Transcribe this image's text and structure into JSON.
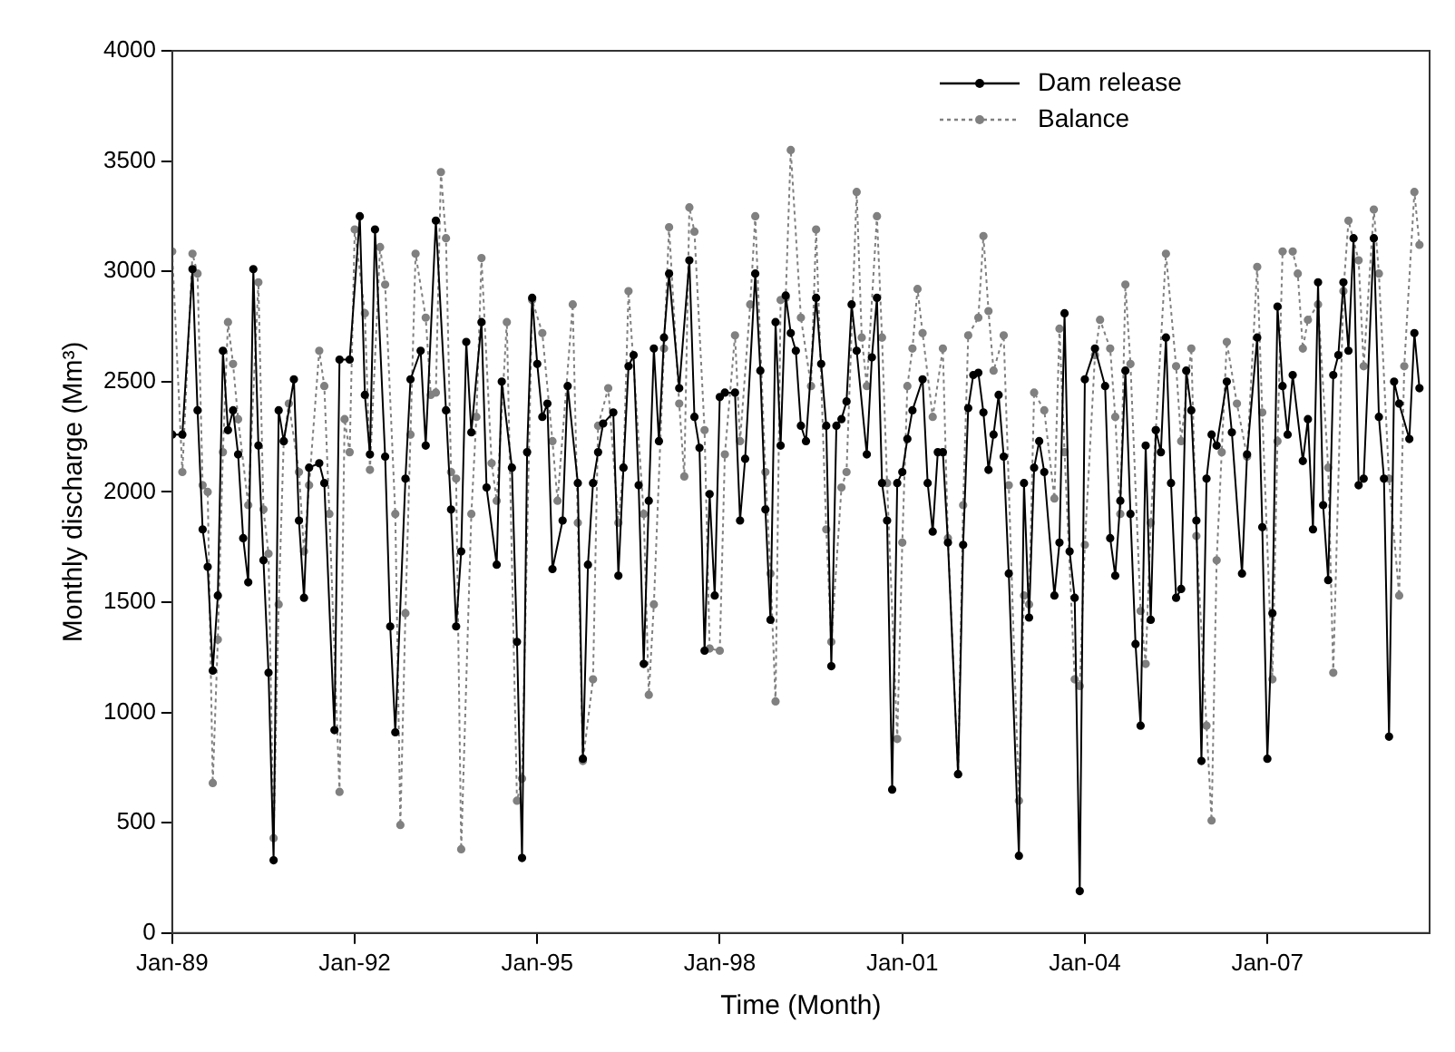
{
  "chart_data": {
    "type": "line",
    "xlabel": "Time (Month)",
    "ylabel": "Monthly discharge (Mm³)",
    "xlim": [
      "1989-01",
      "2009-09"
    ],
    "xticks": [
      {
        "value": "1989-01",
        "label": "Jan-89"
      },
      {
        "value": "1992-01",
        "label": "Jan-92"
      },
      {
        "value": "1995-01",
        "label": "Jan-95"
      },
      {
        "value": "1998-01",
        "label": "Jan-98"
      },
      {
        "value": "2001-01",
        "label": "Jan-01"
      },
      {
        "value": "2004-01",
        "label": "Jan-04"
      },
      {
        "value": "2007-01",
        "label": "Jan-07"
      }
    ],
    "ylim": [
      0,
      4000
    ],
    "yticks": [
      0,
      500,
      1000,
      1500,
      2000,
      2500,
      3000,
      3500,
      4000
    ],
    "grid": false,
    "legend": "top right",
    "series": [
      {
        "name": "Dam release",
        "color": "#000000",
        "marker": "circle",
        "line_style": "solid",
        "x": [
          "1989-01",
          "1989-03",
          "1989-05",
          "1989-06",
          "1989-07",
          "1989-08",
          "1989-09",
          "1989-10",
          "1989-11",
          "1989-12",
          "1990-01",
          "1990-02",
          "1990-03",
          "1990-04",
          "1990-05",
          "1990-06",
          "1990-07",
          "1990-08",
          "1990-09",
          "1990-10",
          "1990-11",
          "1991-01",
          "1991-02",
          "1991-03",
          "1991-04",
          "1991-06",
          "1991-07",
          "1991-09",
          "1991-10",
          "1991-12",
          "1992-02",
          "1992-03",
          "1992-04",
          "1992-05",
          "1992-07",
          "1992-08",
          "1992-09",
          "1992-11",
          "1992-12",
          "1993-02",
          "1993-03",
          "1993-05",
          "1993-07",
          "1993-08",
          "1993-09",
          "1993-10",
          "1993-11",
          "1993-12",
          "1994-02",
          "1994-03",
          "1994-05",
          "1994-06",
          "1994-08",
          "1994-09",
          "1994-10",
          "1994-11",
          "1994-12",
          "1995-01",
          "1995-02",
          "1995-03",
          "1995-04",
          "1995-06",
          "1995-07",
          "1995-09",
          "1995-10",
          "1995-11",
          "1995-12",
          "1996-01",
          "1996-02",
          "1996-04",
          "1996-05",
          "1996-06",
          "1996-07",
          "1996-08",
          "1996-09",
          "1996-10",
          "1996-11",
          "1996-12",
          "1997-01",
          "1997-02",
          "1997-03",
          "1997-05",
          "1997-07",
          "1997-08",
          "1997-09",
          "1997-10",
          "1997-11",
          "1997-12",
          "1998-01",
          "1998-02",
          "1998-04",
          "1998-05",
          "1998-06",
          "1998-08",
          "1998-09",
          "1998-10",
          "1998-11",
          "1998-12",
          "1999-01",
          "1999-02",
          "1999-03",
          "1999-04",
          "1999-05",
          "1999-06",
          "1999-08",
          "1999-09",
          "1999-10",
          "1999-11",
          "1999-12",
          "2000-01",
          "2000-02",
          "2000-03",
          "2000-04",
          "2000-06",
          "2000-07",
          "2000-08",
          "2000-09",
          "2000-10",
          "2000-11",
          "2000-12",
          "2001-01",
          "2001-02",
          "2001-03",
          "2001-05",
          "2001-06",
          "2001-07",
          "2001-08",
          "2001-09",
          "2001-10",
          "2001-12",
          "2002-01",
          "2002-02",
          "2002-03",
          "2002-04",
          "2002-05",
          "2002-06",
          "2002-07",
          "2002-08",
          "2002-09",
          "2002-10",
          "2002-12",
          "2003-01",
          "2003-02",
          "2003-03",
          "2003-04",
          "2003-05",
          "2003-07",
          "2003-08",
          "2003-09",
          "2003-10",
          "2003-11",
          "2003-12",
          "2004-01",
          "2004-03",
          "2004-05",
          "2004-06",
          "2004-07",
          "2004-08",
          "2004-09",
          "2004-10",
          "2004-11",
          "2004-12",
          "2005-01",
          "2005-02",
          "2005-03",
          "2005-04",
          "2005-05",
          "2005-06",
          "2005-07",
          "2005-08",
          "2005-09",
          "2005-10",
          "2005-11",
          "2005-12",
          "2006-01",
          "2006-02",
          "2006-03",
          "2006-05",
          "2006-06",
          "2006-08",
          "2006-09",
          "2006-11",
          "2006-12",
          "2007-01",
          "2007-02",
          "2007-03",
          "2007-04",
          "2007-05",
          "2007-06",
          "2007-08",
          "2007-09",
          "2007-10",
          "2007-11",
          "2007-12",
          "2008-01",
          "2008-02",
          "2008-03",
          "2008-04",
          "2008-05",
          "2008-06",
          "2008-07",
          "2008-08",
          "2008-10",
          "2008-11",
          "2008-12",
          "2009-01",
          "2009-02",
          "2009-03",
          "2009-05",
          "2009-06",
          "2009-07"
        ],
        "values": [
          2260,
          2260,
          3010,
          2370,
          1830,
          1660,
          1190,
          1530,
          2640,
          2280,
          2370,
          2170,
          1790,
          1590,
          3010,
          2210,
          1690,
          1180,
          330,
          2370,
          2230,
          2510,
          1870,
          1520,
          2110,
          2130,
          2040,
          920,
          2600,
          2600,
          3250,
          2440,
          2170,
          3190,
          2160,
          1390,
          910,
          2060,
          2510,
          2640,
          2210,
          3230,
          2370,
          1920,
          1390,
          1730,
          2680,
          2270,
          2770,
          2020,
          1670,
          2500,
          2110,
          1320,
          340,
          2180,
          2880,
          2580,
          2340,
          2400,
          1650,
          1870,
          2480,
          2040,
          790,
          1670,
          2040,
          2180,
          2310,
          2360,
          1620,
          2110,
          2570,
          2620,
          2030,
          1220,
          1960,
          2650,
          2230,
          2700,
          2990,
          2470,
          3050,
          2340,
          2200,
          1280,
          1990,
          1530,
          2430,
          2450,
          2450,
          1870,
          2150,
          2990,
          2550,
          1920,
          1420,
          2770,
          2210,
          2890,
          2720,
          2640,
          2300,
          2230,
          2880,
          2580,
          2300,
          1210,
          2300,
          2330,
          2410,
          2850,
          2640,
          2170,
          2610,
          2880,
          2040,
          1870,
          650,
          2040,
          2090,
          2240,
          2370,
          2510,
          2040,
          1820,
          2180,
          2180,
          1770,
          720,
          1760,
          2380,
          2530,
          2540,
          2360,
          2100,
          2260,
          2440,
          2160,
          1630,
          350,
          2040,
          1430,
          2110,
          2230,
          2090,
          1530,
          1770,
          2810,
          1730,
          1520,
          190,
          2510,
          2650,
          2480,
          1790,
          1620,
          1960,
          2550,
          1900,
          1310,
          940,
          2210,
          1420,
          2280,
          2180,
          2700,
          2040,
          1520,
          1560,
          2550,
          2370,
          1870,
          780,
          2060,
          2260,
          2210,
          2500,
          2270,
          1630,
          2170,
          2700,
          1840,
          790,
          1450,
          2840,
          2480,
          2260,
          2530,
          2140,
          2330,
          1830,
          2950,
          1940,
          1600,
          2530,
          2620,
          2950,
          2640,
          3150,
          2030,
          2060,
          3150,
          2340,
          2060,
          890,
          2500,
          2400,
          2240,
          2720,
          2470
        ]
      },
      {
        "name": "Balance",
        "color": "#808080",
        "marker": "circle",
        "line_style": "dotted",
        "x": [
          "1989-01",
          "1989-03",
          "1989-05",
          "1989-06",
          "1989-07",
          "1989-08",
          "1989-09",
          "1989-10",
          "1989-11",
          "1989-12",
          "1990-01",
          "1990-02",
          "1990-04",
          "1990-06",
          "1990-07",
          "1990-08",
          "1990-09",
          "1990-10",
          "1990-11",
          "1990-12",
          "1991-02",
          "1991-03",
          "1991-04",
          "1991-06",
          "1991-07",
          "1991-08",
          "1991-10",
          "1991-11",
          "1991-12",
          "1992-01",
          "1992-03",
          "1992-04",
          "1992-06",
          "1992-07",
          "1992-09",
          "1992-10",
          "1992-11",
          "1992-12",
          "1993-01",
          "1993-03",
          "1993-04",
          "1993-05",
          "1993-06",
          "1993-07",
          "1993-08",
          "1993-09",
          "1993-10",
          "1993-12",
          "1994-01",
          "1994-02",
          "1994-04",
          "1994-05",
          "1994-07",
          "1994-09",
          "1994-10",
          "1994-12",
          "1995-02",
          "1995-04",
          "1995-05",
          "1995-08",
          "1995-09",
          "1995-10",
          "1995-12",
          "1996-01",
          "1996-03",
          "1996-05",
          "1996-06",
          "1996-07",
          "1996-10",
          "1996-11",
          "1996-12",
          "1997-02",
          "1997-03",
          "1997-05",
          "1997-06",
          "1997-07",
          "1997-08",
          "1997-10",
          "1997-11",
          "1998-01",
          "1998-02",
          "1998-04",
          "1998-05",
          "1998-07",
          "1998-08",
          "1998-10",
          "1998-11",
          "1998-12",
          "1999-01",
          "1999-02",
          "1999-03",
          "1999-05",
          "1999-07",
          "1999-08",
          "1999-10",
          "1999-11",
          "2000-01",
          "2000-02",
          "2000-04",
          "2000-05",
          "2000-06",
          "2000-08",
          "2000-09",
          "2000-10",
          "2000-12",
          "2001-01",
          "2001-02",
          "2001-03",
          "2001-04",
          "2001-05",
          "2001-07",
          "2001-09",
          "2001-10",
          "2001-12",
          "2002-01",
          "2002-02",
          "2002-04",
          "2002-05",
          "2002-06",
          "2002-07",
          "2002-09",
          "2002-10",
          "2002-12",
          "2003-01",
          "2003-02",
          "2003-03",
          "2003-05",
          "2003-07",
          "2003-08",
          "2003-09",
          "2003-11",
          "2003-12",
          "2004-01",
          "2004-03",
          "2004-04",
          "2004-06",
          "2004-07",
          "2004-08",
          "2004-09",
          "2004-10",
          "2004-12",
          "2005-01",
          "2005-02",
          "2005-03",
          "2005-05",
          "2005-07",
          "2005-08",
          "2005-10",
          "2005-11",
          "2006-01",
          "2006-02",
          "2006-03",
          "2006-04",
          "2006-05",
          "2006-07",
          "2006-09",
          "2006-11",
          "2006-12",
          "2007-02",
          "2007-03",
          "2007-04",
          "2007-06",
          "2007-07",
          "2007-08",
          "2007-09",
          "2007-11",
          "2008-01",
          "2008-02",
          "2008-04",
          "2008-05",
          "2008-07",
          "2008-08",
          "2008-10",
          "2008-11",
          "2009-01",
          "2009-03",
          "2009-04",
          "2009-06",
          "2009-07"
        ],
        "values": [
          3090,
          2090,
          3080,
          2990,
          2030,
          2000,
          680,
          1330,
          2180,
          2770,
          2580,
          2330,
          1940,
          2950,
          1920,
          1720,
          430,
          1490,
          2230,
          2400,
          2090,
          1730,
          2030,
          2640,
          2480,
          1900,
          640,
          2330,
          2180,
          3190,
          2810,
          2100,
          3110,
          2940,
          1900,
          490,
          1450,
          2260,
          3080,
          2790,
          2440,
          2450,
          3450,
          3150,
          2090,
          2060,
          380,
          1900,
          2340,
          3060,
          2130,
          1960,
          2770,
          600,
          700,
          2870,
          2720,
          2230,
          1960,
          2850,
          1860,
          780,
          1150,
          2300,
          2470,
          1860,
          2110,
          2910,
          1900,
          1080,
          1490,
          2650,
          3200,
          2400,
          2070,
          3290,
          3180,
          2280,
          1290,
          1280,
          2170,
          2710,
          2230,
          2850,
          3250,
          2090,
          1630,
          1050,
          2870,
          2880,
          3550,
          2790,
          2480,
          3190,
          1830,
          1320,
          2020,
          2090,
          3360,
          2700,
          2480,
          3250,
          2700,
          2040,
          880,
          1770,
          2480,
          2650,
          2920,
          2720,
          2340,
          2650,
          1790,
          720,
          1940,
          2710,
          2790,
          3160,
          2820,
          2550,
          2710,
          2030,
          600,
          1530,
          1490,
          2450,
          2370,
          1970,
          2740,
          2180,
          1150,
          1120,
          1760,
          2620,
          2780,
          2650,
          2340,
          1900,
          2940,
          2580,
          1460,
          1220,
          1860,
          2280,
          3080,
          2570,
          2230,
          2650,
          1800,
          940,
          510,
          1690,
          2180,
          2680,
          2400,
          2160,
          3020,
          2360,
          1150,
          2230,
          3090,
          3090,
          2990,
          2650,
          2780,
          2850,
          2110,
          1180,
          2910,
          3230,
          3050,
          2570,
          3280,
          2990,
          2060,
          1530,
          2570,
          3360,
          3120
        ]
      }
    ]
  }
}
